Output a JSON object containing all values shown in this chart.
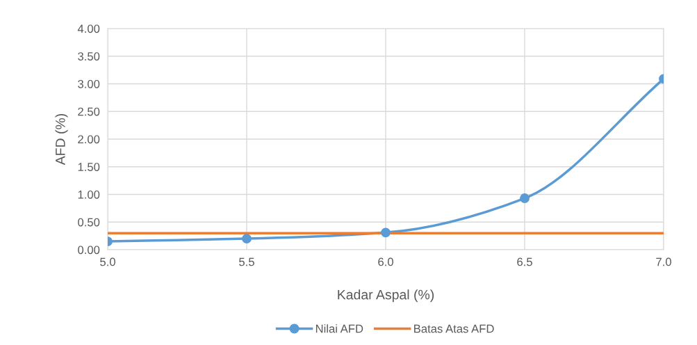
{
  "chart_data": {
    "type": "line",
    "xlabel": "Kadar Aspal (%)",
    "ylabel": "AFD (%)",
    "x": [
      5.0,
      5.5,
      6.0,
      6.5,
      7.0
    ],
    "series": [
      {
        "name": "Nilai AFD",
        "color": "#5b9bd5",
        "values": [
          0.15,
          0.2,
          0.31,
          0.93,
          3.09
        ],
        "marker": "circle"
      },
      {
        "name": "Batas Atas AFD",
        "color": "#ed7d31",
        "x": [
          5.0,
          7.0
        ],
        "values": [
          0.3,
          0.3
        ],
        "marker": "none"
      }
    ],
    "xlim": [
      5.0,
      7.0
    ],
    "xticks": [
      {
        "value": 5.0,
        "label": "5.0"
      },
      {
        "value": 5.5,
        "label": "5.5"
      },
      {
        "value": 6.0,
        "label": "6.0"
      },
      {
        "value": 6.5,
        "label": "6.5"
      },
      {
        "value": 7.0,
        "label": "7.0"
      }
    ],
    "ylim": [
      0,
      4
    ],
    "yticks": [
      {
        "value": 0,
        "label": "0.00"
      },
      {
        "value": 0.5,
        "label": "0.50"
      },
      {
        "value": 1,
        "label": "1.00"
      },
      {
        "value": 1.5,
        "label": "1.50"
      },
      {
        "value": 2,
        "label": "2.00"
      },
      {
        "value": 2.5,
        "label": "2.50"
      },
      {
        "value": 3,
        "label": "3.00"
      },
      {
        "value": 3.5,
        "label": "3.50"
      },
      {
        "value": 4,
        "label": "4.00"
      }
    ],
    "grid": true,
    "legend": "bottom",
    "line_style": "solid"
  }
}
